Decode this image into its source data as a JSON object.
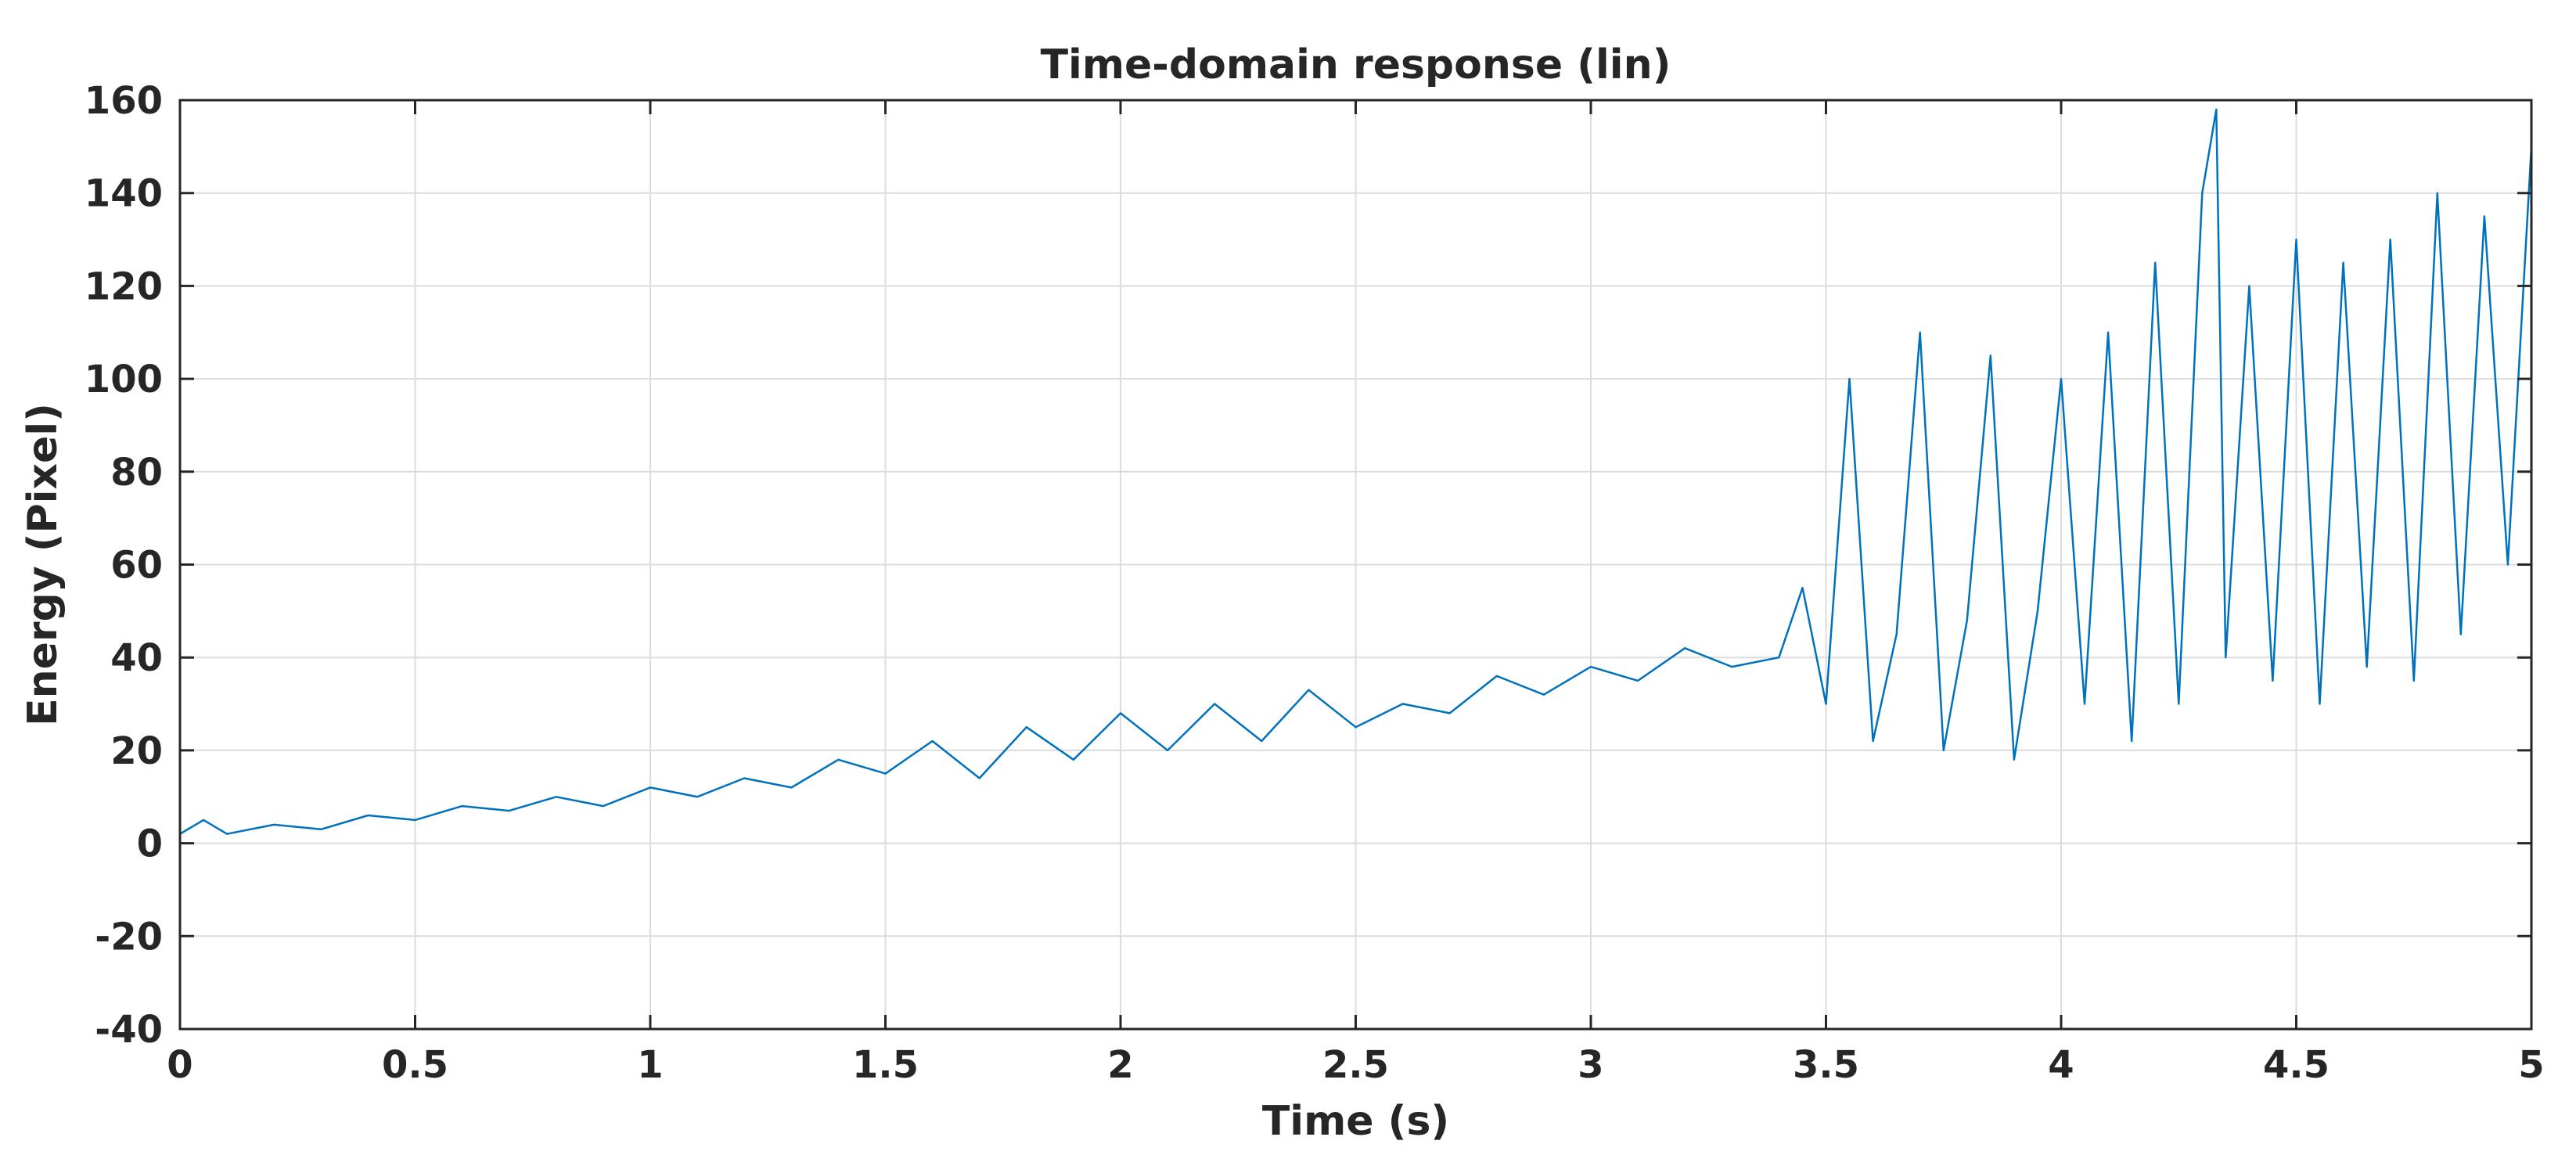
{
  "chart_data": {
    "type": "line",
    "title": "Time-domain response (lin)",
    "xlabel": "Time (s)",
    "ylabel": "Energy (Pixel)",
    "xlim": [
      0,
      5
    ],
    "ylim": [
      -40,
      160
    ],
    "grid": true,
    "x_ticks": [
      0,
      0.5,
      1,
      1.5,
      2,
      2.5,
      3,
      3.5,
      4,
      4.5,
      5
    ],
    "x_tick_labels": [
      "0",
      "0.5",
      "1",
      "1.5",
      "2",
      "2.5",
      "3",
      "3.5",
      "4",
      "4.5",
      "5"
    ],
    "y_ticks": [
      -40,
      -20,
      0,
      20,
      40,
      60,
      80,
      100,
      120,
      140,
      160
    ],
    "y_tick_labels": [
      "-40",
      "-20",
      "0",
      "20",
      "40",
      "60",
      "80",
      "100",
      "120",
      "140",
      "160"
    ],
    "line_color": "#0072BD",
    "series": [
      {
        "x": [
          0,
          0.05,
          0.1,
          0.2,
          0.3,
          0.4,
          0.5,
          0.6,
          0.7,
          0.8,
          0.9,
          1.0,
          1.1,
          1.2,
          1.3,
          1.4,
          1.5,
          1.6,
          1.7,
          1.8,
          1.9,
          2.0,
          2.1,
          2.2,
          2.3,
          2.4,
          2.5,
          2.6,
          2.7,
          2.8,
          2.9,
          3.0,
          3.1,
          3.2,
          3.3,
          3.4,
          3.45,
          3.5,
          3.55,
          3.6,
          3.65,
          3.7,
          3.75,
          3.8,
          3.85,
          3.9,
          3.95,
          4.0,
          4.05,
          4.1,
          4.15,
          4.2,
          4.25,
          4.3,
          4.33,
          4.35,
          4.4,
          4.45,
          4.5,
          4.55,
          4.6,
          4.65,
          4.7,
          4.75,
          4.8,
          4.85,
          4.9,
          4.95,
          5.0
        ],
        "values": [
          2,
          5,
          2,
          4,
          3,
          6,
          5,
          8,
          7,
          10,
          8,
          12,
          10,
          14,
          12,
          18,
          15,
          22,
          14,
          25,
          18,
          28,
          20,
          30,
          22,
          33,
          25,
          30,
          28,
          36,
          32,
          38,
          35,
          42,
          38,
          40,
          55,
          30,
          100,
          22,
          45,
          110,
          20,
          48,
          105,
          18,
          50,
          100,
          30,
          110,
          22,
          125,
          30,
          140,
          158,
          40,
          120,
          35,
          130,
          30,
          125,
          38,
          130,
          35,
          140,
          45,
          135,
          60,
          150
        ]
      }
    ]
  }
}
